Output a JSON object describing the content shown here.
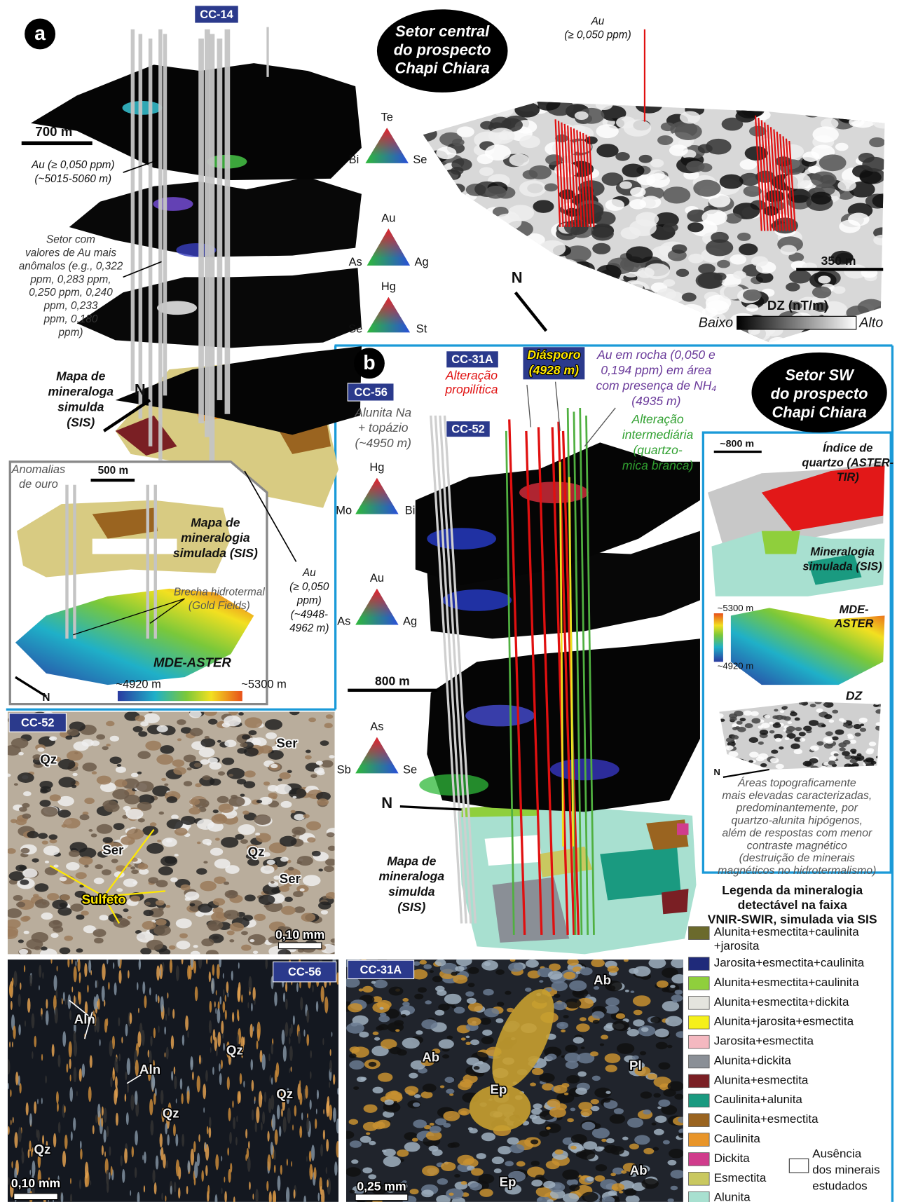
{
  "panel_a": {
    "label": "a",
    "hole_cc14": "CC-14",
    "scale_700": "700 m",
    "au_label_1": [
      "Au (≥ 0,050 ppm)",
      "(~5015-5060 m)"
    ],
    "au_anomalous": [
      "Setor com",
      "valores de Au mais",
      "anômalos (e.g., 0,322",
      "ppm, 0,283 ppm,",
      "0,250 ppm, 0,240",
      "ppm, 0,233",
      "ppm, 0,180",
      "ppm)"
    ],
    "ternaries": [
      {
        "top": "Te",
        "left": "Bi",
        "right": "Se"
      },
      {
        "top": "Au",
        "left": "As",
        "right": "Ag"
      },
      {
        "top": "Hg",
        "left": "Se",
        "right": "St"
      }
    ],
    "sis_label": [
      "Mapa de",
      "mineraloga",
      "simulda",
      "(SIS)"
    ],
    "north": "N",
    "au_label_2": [
      "Au",
      "(≥ 0,050",
      "ppm)",
      "(~4948-",
      "4962 m)"
    ],
    "inset": {
      "gold_anomalies": [
        "Anomalias",
        "de ouro"
      ],
      "scale_500": "500 m",
      "sis_label": [
        "Mapa de",
        "mineralogia",
        "simulada (SIS)"
      ],
      "breccia": [
        "Brecha hidrotermal",
        "(Gold Fields)"
      ],
      "dem_label": "MDE-ASTER",
      "elev_min": "~4920 m",
      "elev_max": "~5300 m",
      "north": "N"
    },
    "central": {
      "title": [
        "Setor central",
        "do prospecto",
        "Chapi Chiara"
      ],
      "au_label": [
        "Au",
        "(≥ 0,050 ppm)"
      ],
      "scale_350": "350 m",
      "north": "N",
      "colorbar_title": "DZ (nT/m)",
      "low": "Baixo",
      "high": "Alto"
    }
  },
  "panel_b": {
    "label": "b",
    "hole_cc56": "CC-56",
    "alunite_label": [
      "Alunita Na",
      "+ topázio",
      "(~4950 m)"
    ],
    "hole_cc31a": "CC-31A",
    "propylitic": [
      "Alteração",
      "propilítica"
    ],
    "hole_cc52": "CC-52",
    "diaspore": [
      "Diásporo",
      "(4928 m)"
    ],
    "au_rock": [
      "Au em rocha (0,050 e",
      "0,194 ppm) em área",
      "com presença de NH₄",
      "(4935 m)"
    ],
    "intermediate": [
      "Alteração",
      "intermediária",
      "(quartzo-",
      "mica branca)"
    ],
    "title": [
      "Setor SW",
      "do prospecto",
      "Chapi Chiara"
    ],
    "ternaries": [
      {
        "top": "Hg",
        "left": "Mo",
        "right": "Bi"
      },
      {
        "top": "Au",
        "left": "As",
        "right": "Ag"
      },
      {
        "top": "As",
        "left": "Sb",
        "right": "Se"
      }
    ],
    "scale_800": "800 m",
    "north": "N",
    "sis_label": [
      "Mapa de",
      "mineraloga",
      "simulda",
      "(SIS)"
    ],
    "side": {
      "scale": "~800 m",
      "quartz_index": [
        "Índice de",
        "quartzo (ASTER-",
        "TIR)"
      ],
      "sis_label": [
        "Mineralogia",
        "simulada (SIS)"
      ],
      "elev_max": "~5300 m",
      "elev_min": "~4920 m",
      "dem_label": [
        "MDE-",
        "ASTER"
      ],
      "dz_label": "DZ",
      "north": "N",
      "description": [
        "Áreas topograficamente",
        "mais elevadas caracterizadas,",
        "predominantemente, por",
        "quartzo-alunita hipógenos,",
        "além de respostas com menor",
        "contraste magnético",
        "(destruição de minerais",
        "magnéticos no hidrotermalismo)"
      ]
    }
  },
  "photos": [
    {
      "id": "CC-52",
      "labels": [
        "Qz",
        "Ser",
        "Ser",
        "Qz",
        "Ser",
        "Sulfeto"
      ],
      "scale": "0,10 mm"
    },
    {
      "id": "CC-56",
      "labels": [
        "Aln",
        "Aln",
        "Qz",
        "Qz",
        "Qz",
        "Qz"
      ],
      "scale": "0,10 mm"
    },
    {
      "id": "CC-31A",
      "labels": [
        "Ab",
        "Ab",
        "Pl",
        "Ep",
        "Ep",
        "Ab"
      ],
      "scale": "0,25 mm"
    }
  ],
  "legend": {
    "title": [
      "Legenda da mineralogia",
      "detectável na faixa",
      "VNIR-SWIR, simulada via SIS"
    ],
    "items": [
      {
        "lines": [
          "Alunita+esmectita+caulinita",
          "+jarosita"
        ],
        "color": "#6b6a2c"
      },
      {
        "lines": [
          "Jarosita+esmectita+caulinita"
        ],
        "color": "#1f2a7a"
      },
      {
        "lines": [
          "Alunita+esmectita+caulinita"
        ],
        "color": "#8fcf3c"
      },
      {
        "lines": [
          "Alunita+esmectita+dickita"
        ],
        "color": "#e4e4de"
      },
      {
        "lines": [
          "Alunita+jarosita+esmectita"
        ],
        "color": "#f5f01a"
      },
      {
        "lines": [
          "Jarosita+esmectita"
        ],
        "color": "#f4b8c0"
      },
      {
        "lines": [
          "Alunita+dickita"
        ],
        "color": "#8a8f96"
      },
      {
        "lines": [
          "Alunita+esmectita"
        ],
        "color": "#7a1f24"
      },
      {
        "lines": [
          "Caulinita+alunita"
        ],
        "color": "#1a9a80"
      },
      {
        "lines": [
          "Caulinita+esmectita"
        ],
        "color": "#9a6420"
      },
      {
        "lines": [
          "Caulinita"
        ],
        "color": "#e8952a"
      },
      {
        "lines": [
          "Dickita"
        ],
        "color": "#d03c8c"
      },
      {
        "lines": [
          "Esmectita"
        ],
        "color": "#c9c860"
      },
      {
        "lines": [
          "Alunita"
        ],
        "color": "#a8e0d0"
      }
    ],
    "absence": [
      "Ausência",
      "dos minerais",
      "estudados"
    ]
  }
}
